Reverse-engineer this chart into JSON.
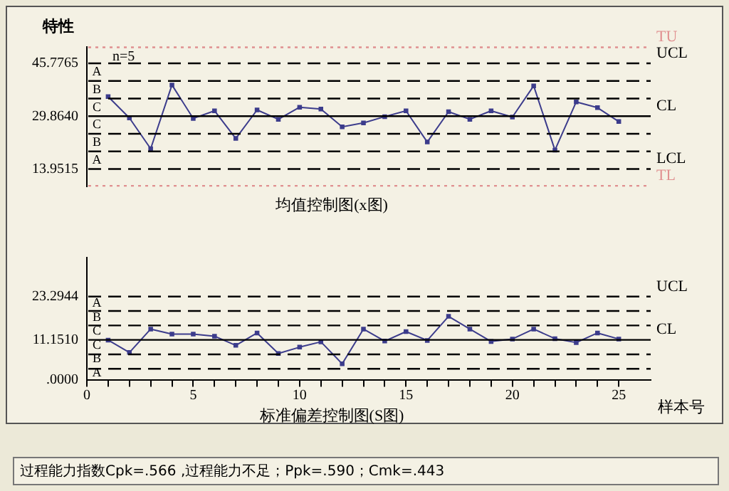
{
  "chart_data": [
    {
      "type": "line",
      "title": "均值控制图(x图)",
      "ylabel": "特性",
      "x": [
        1,
        2,
        3,
        4,
        5,
        6,
        7,
        8,
        9,
        10,
        11,
        12,
        13,
        14,
        15,
        16,
        17,
        18,
        19,
        20,
        21,
        22,
        23,
        24,
        25
      ],
      "series": [
        {
          "color": "#3c3c8c",
          "values": [
            35.77,
            29.33,
            20.06,
            39.26,
            29.19,
            31.48,
            23.15,
            31.74,
            28.92,
            32.55,
            32.01,
            26.64,
            27.85,
            29.73,
            31.48,
            22.08,
            31.21,
            28.92,
            31.48,
            29.6,
            38.99,
            19.66,
            34.16,
            32.42,
            28.25
          ]
        }
      ],
      "xlim": [
        0,
        26.5
      ],
      "ylim": [
        8.8,
        50.7
      ],
      "yticks": [
        45.7765,
        {
          "value": 29.864,
          "label": "29.8640"
        },
        13.9515
      ],
      "tick_labels": "y",
      "grid": false,
      "legend": false,
      "marker": "square",
      "line_style": "solid",
      "annotations": [
        "n=5",
        "A",
        "B",
        "C",
        "C",
        "B",
        "A"
      ],
      "ref_lines": [
        {
          "axis": "y",
          "value": 50.6,
          "label": "TU",
          "color": "#e09090",
          "line_style": "dotted"
        },
        {
          "axis": "y",
          "value": 45.7765,
          "label": "UCL",
          "color": "#000000",
          "line_style": "dashed"
        },
        {
          "axis": "y",
          "value": 40.472,
          "color": "#000000",
          "line_style": "dashed"
        },
        {
          "axis": "y",
          "value": 35.168,
          "color": "#000000",
          "line_style": "dashed"
        },
        {
          "axis": "y",
          "value": 29.864,
          "label": "CL",
          "color": "#000000",
          "line_style": "solid"
        },
        {
          "axis": "y",
          "value": 24.56,
          "color": "#000000",
          "line_style": "dashed"
        },
        {
          "axis": "y",
          "value": 19.256,
          "color": "#000000",
          "line_style": "dashed"
        },
        {
          "axis": "y",
          "value": 13.9515,
          "label": "LCL",
          "color": "#000000",
          "line_style": "dashed"
        },
        {
          "axis": "y",
          "value": 8.9,
          "label": "TL",
          "color": "#e09090",
          "line_style": "dotted"
        }
      ]
    },
    {
      "type": "line",
      "title": "标准偏差控制图(S图)",
      "xlabel": "样本号",
      "x": [
        1,
        2,
        3,
        4,
        5,
        6,
        7,
        8,
        9,
        10,
        11,
        12,
        13,
        14,
        15,
        16,
        17,
        18,
        19,
        20,
        21,
        22,
        23,
        24,
        25
      ],
      "series": [
        {
          "color": "#3c3c8c",
          "values": [
            11.1,
            7.63,
            14.18,
            12.79,
            12.79,
            12.19,
            9.62,
            13.09,
            7.34,
            9.12,
            10.61,
            4.46,
            14.18,
            10.81,
            13.48,
            11.0,
            17.74,
            14.18,
            10.71,
            11.4,
            14.18,
            11.5,
            10.41,
            13.09,
            11.4
          ]
        }
      ],
      "xlim": [
        0,
        26.5
      ],
      "ylim": [
        0,
        34.2
      ],
      "xticks": [
        0,
        {
          "value": 1,
          "label": null
        },
        {
          "value": 2,
          "label": null
        },
        {
          "value": 3,
          "label": null
        },
        {
          "value": 4,
          "label": null
        },
        5,
        {
          "value": 6,
          "label": null
        },
        {
          "value": 7,
          "label": null
        },
        {
          "value": 8,
          "label": null
        },
        {
          "value": 9,
          "label": null
        },
        10,
        {
          "value": 11,
          "label": null
        },
        {
          "value": 12,
          "label": null
        },
        {
          "value": 13,
          "label": null
        },
        {
          "value": 14,
          "label": null
        },
        15,
        {
          "value": 16,
          "label": null
        },
        {
          "value": 17,
          "label": null
        },
        {
          "value": 18,
          "label": null
        },
        {
          "value": 19,
          "label": null
        },
        20,
        {
          "value": 21,
          "label": null
        },
        {
          "value": 22,
          "label": null
        },
        {
          "value": 23,
          "label": null
        },
        {
          "value": 24,
          "label": null
        },
        25
      ],
      "yticks": [
        {
          "value": 0,
          "label": ".0000"
        },
        {
          "value": 11.151,
          "label": "11.1510"
        },
        23.2944
      ],
      "grid": false,
      "legend": false,
      "marker": "square",
      "line_style": "solid",
      "annotations": [
        "过程能力指数Cpk=.566 ,过程能力不足；Ppk=.590；Cmk=.443",
        "A",
        "B",
        "C",
        "C",
        "B",
        "A"
      ],
      "ref_lines": [
        {
          "axis": "y",
          "value": 23.2944,
          "label": "UCL",
          "color": "#000000",
          "line_style": "dashed"
        },
        {
          "axis": "y",
          "value": 19.247,
          "color": "#000000",
          "line_style": "dashed"
        },
        {
          "axis": "y",
          "value": 15.199,
          "color": "#000000",
          "line_style": "dashed"
        },
        {
          "axis": "y",
          "value": 11.151,
          "label": "CL",
          "color": "#000000",
          "line_style": "solid"
        },
        {
          "axis": "y",
          "value": 7.103,
          "color": "#000000",
          "line_style": "dashed"
        },
        {
          "axis": "y",
          "value": 3.055,
          "color": "#000000",
          "line_style": "dashed"
        }
      ]
    }
  ]
}
